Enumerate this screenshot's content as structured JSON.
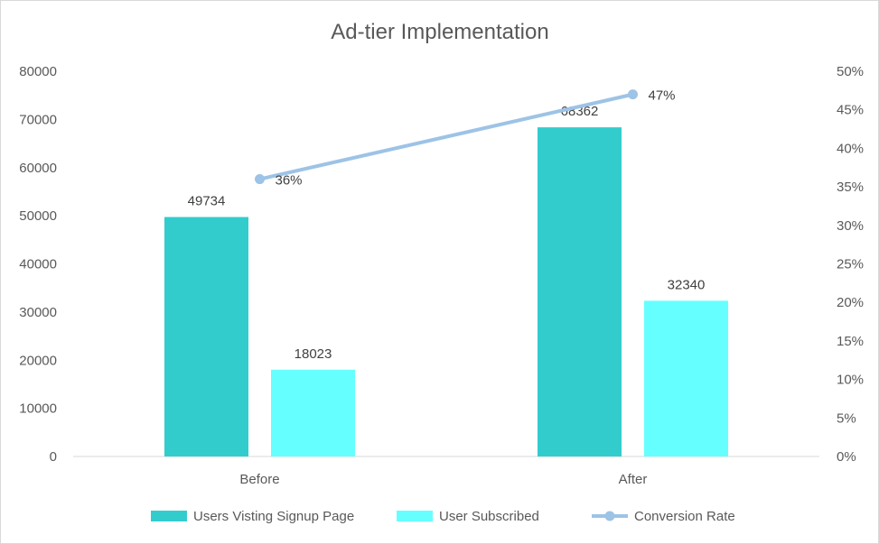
{
  "chart_data": {
    "type": "bar",
    "title": "Ad-tier Implementation",
    "categories": [
      "Before",
      "After"
    ],
    "series": [
      {
        "name": "Users Visting Signup Page",
        "kind": "bar",
        "axis": "left",
        "color": "#33cccc",
        "values": [
          49734,
          68362
        ],
        "labels": [
          "49734",
          "68362"
        ]
      },
      {
        "name": "User Subscribed",
        "kind": "bar",
        "axis": "left",
        "color": "#66ffff",
        "values": [
          18023,
          32340
        ],
        "labels": [
          "18023",
          "32340"
        ]
      },
      {
        "name": "Conversion Rate",
        "kind": "line",
        "axis": "right",
        "color": "#9dc3e6",
        "values": [
          0.36,
          0.47
        ],
        "labels": [
          "36%",
          "47%"
        ]
      }
    ],
    "y_left": {
      "min": 0,
      "max": 80000,
      "step": 10000,
      "tick_labels": [
        "0",
        "10000",
        "20000",
        "30000",
        "40000",
        "50000",
        "60000",
        "70000",
        "80000"
      ]
    },
    "y_right": {
      "min": 0,
      "max": 0.5,
      "step": 0.05,
      "tick_labels": [
        "0%",
        "5%",
        "10%",
        "15%",
        "20%",
        "25%",
        "30%",
        "35%",
        "40%",
        "45%",
        "50%"
      ]
    },
    "grid": false,
    "legend_position": "bottom"
  }
}
